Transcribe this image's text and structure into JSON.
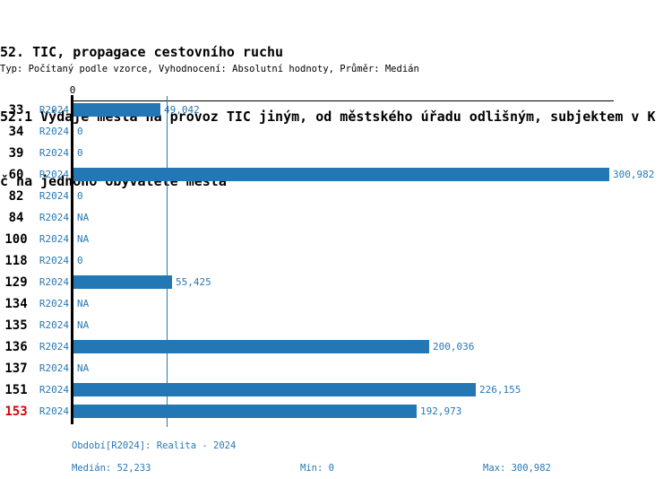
{
  "header": {
    "title_line1": "52. TIC, propagace cestovního ruchu",
    "title_line2": "52.1 Výdaje města na provoz TIC jiným, od městského úřadu odlišným, subjektem v K",
    "title_line3": "č na jednoho obyvatele města",
    "meta": "Typ: Počítaný podle vzorce, Vyhodnocení: Absolutní hodnoty, Průměr: Medián"
  },
  "chart_data": {
    "type": "bar",
    "orientation": "horizontal",
    "axis_zero_label": "0",
    "axis_max": 300982,
    "xlim": [
      0,
      300982
    ],
    "median_value": 52233,
    "categories": [
      "33",
      "34",
      "39",
      "60",
      "82",
      "84",
      "100",
      "118",
      "129",
      "134",
      "135",
      "136",
      "137",
      "151",
      "153"
    ],
    "series": [
      {
        "name": "R2024",
        "values": [
          49042,
          0,
          0,
          300982,
          0,
          null,
          null,
          0,
          55425,
          null,
          null,
          200036,
          null,
          226155,
          192973
        ]
      }
    ],
    "rows": [
      {
        "id": "33",
        "period": "R2024",
        "value": 49042,
        "label": "49,042",
        "highlight": false
      },
      {
        "id": "34",
        "period": "R2024",
        "value": 0,
        "label": "0",
        "highlight": false
      },
      {
        "id": "39",
        "period": "R2024",
        "value": 0,
        "label": "0",
        "highlight": false
      },
      {
        "id": "60",
        "period": "R2024",
        "value": 300982,
        "label": "300,982",
        "highlight": false
      },
      {
        "id": "82",
        "period": "R2024",
        "value": 0,
        "label": "0",
        "highlight": false
      },
      {
        "id": "84",
        "period": "R2024",
        "value": null,
        "label": "NA",
        "highlight": false
      },
      {
        "id": "100",
        "period": "R2024",
        "value": null,
        "label": "NA",
        "highlight": false
      },
      {
        "id": "118",
        "period": "R2024",
        "value": 0,
        "label": "0",
        "highlight": false
      },
      {
        "id": "129",
        "period": "R2024",
        "value": 55425,
        "label": "55,425",
        "highlight": false
      },
      {
        "id": "134",
        "period": "R2024",
        "value": null,
        "label": "NA",
        "highlight": false
      },
      {
        "id": "135",
        "period": "R2024",
        "value": null,
        "label": "NA",
        "highlight": false
      },
      {
        "id": "136",
        "period": "R2024",
        "value": 200036,
        "label": "200,036",
        "highlight": false
      },
      {
        "id": "137",
        "period": "R2024",
        "value": null,
        "label": "NA",
        "highlight": false
      },
      {
        "id": "151",
        "period": "R2024",
        "value": 226155,
        "label": "226,155",
        "highlight": false
      },
      {
        "id": "153",
        "period": "R2024",
        "value": 192973,
        "label": "192,973",
        "highlight": true
      }
    ]
  },
  "footer": {
    "period_label": "Období[R2024]: Realita - 2024",
    "median_label": "Medián: 52,233",
    "min_label": "Min: 0",
    "max_label": "Max: 300,982"
  },
  "colors": {
    "bar": "#2277b4",
    "text_blue": "#2878b4",
    "highlight_red": "#e00000",
    "axis_black": "#000000"
  }
}
